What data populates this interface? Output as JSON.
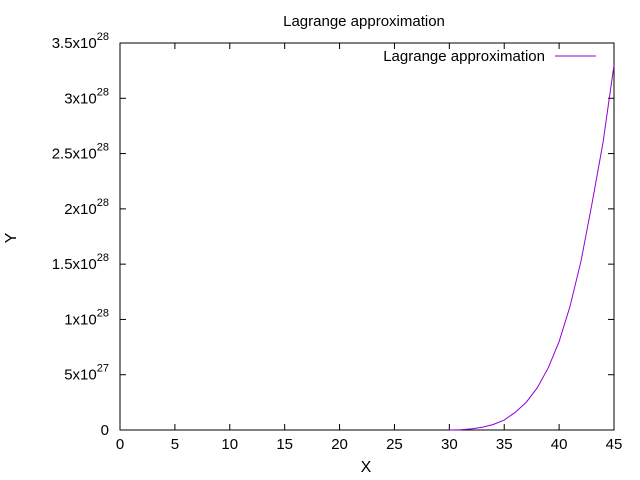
{
  "chart_data": {
    "type": "line",
    "title": "Lagrange approximation",
    "xlabel": "X",
    "ylabel": "Y",
    "xlim": [
      0,
      45
    ],
    "ylim": [
      0,
      3.5e+28
    ],
    "x_ticks": [
      {
        "value": 0,
        "label": "0"
      },
      {
        "value": 5,
        "label": "5"
      },
      {
        "value": 10,
        "label": "10"
      },
      {
        "value": 15,
        "label": "15"
      },
      {
        "value": 20,
        "label": "20"
      },
      {
        "value": 25,
        "label": "25"
      },
      {
        "value": 30,
        "label": "30"
      },
      {
        "value": 35,
        "label": "35"
      },
      {
        "value": 40,
        "label": "40"
      },
      {
        "value": 45,
        "label": "45"
      }
    ],
    "y_ticks": [
      {
        "value": 0,
        "mantissa": "0",
        "exponent": ""
      },
      {
        "value": 5e+27,
        "mantissa": "5x10",
        "exponent": "27"
      },
      {
        "value": 1e+28,
        "mantissa": "1x10",
        "exponent": "28"
      },
      {
        "value": 1.5e+28,
        "mantissa": "1.5x10",
        "exponent": "28"
      },
      {
        "value": 2e+28,
        "mantissa": "2x10",
        "exponent": "28"
      },
      {
        "value": 2.5e+28,
        "mantissa": "2.5x10",
        "exponent": "28"
      },
      {
        "value": 3e+28,
        "mantissa": "3x10",
        "exponent": "28"
      },
      {
        "value": 3.5e+28,
        "mantissa": "3.5x10",
        "exponent": "28"
      }
    ],
    "grid": false,
    "legend_position": "top-right",
    "series": [
      {
        "name": "Lagrange approximation",
        "color": "#9400d3",
        "x": [
          30,
          31,
          32,
          33,
          34,
          35,
          36,
          37,
          38,
          39,
          40,
          41,
          42,
          43,
          44,
          45
        ],
        "y": [
          0,
          2e+25,
          1e+26,
          2.5e+26,
          5e+26,
          9e+26,
          1.6e+27,
          2.5e+27,
          3.8e+27,
          5.6e+27,
          8e+27,
          1.12e+28,
          1.53e+28,
          2.05e+28,
          2.6e+28,
          3.3e+28
        ]
      }
    ]
  }
}
